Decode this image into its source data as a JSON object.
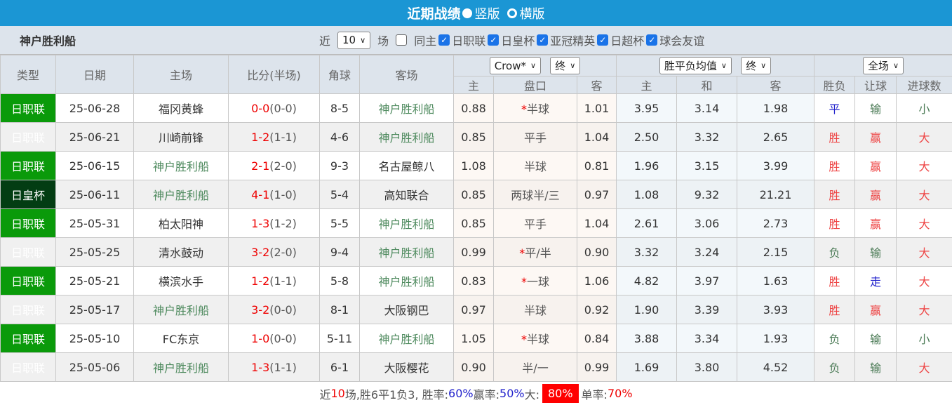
{
  "header": {
    "title": "近期战绩",
    "view_vertical": "竖版",
    "view_horizontal": "横版"
  },
  "toolbar": {
    "team": "神户胜利船",
    "recent_prefix": "近",
    "recent_count": "10",
    "recent_suffix": "场",
    "same_host": "同主",
    "filters": [
      {
        "label": "日职联",
        "checked": true
      },
      {
        "label": "日皇杯",
        "checked": true
      },
      {
        "label": "亚冠精英",
        "checked": true
      },
      {
        "label": "日超杯",
        "checked": true
      },
      {
        "label": "球会友谊",
        "checked": true
      }
    ]
  },
  "columns": {
    "type": "类型",
    "date": "日期",
    "home": "主场",
    "score": "比分(半场)",
    "corner": "角球",
    "away": "客场",
    "company_select": "Crow*",
    "final_select1": "终",
    "odds_select": "胜平负均值",
    "final_select2": "终",
    "period_select": "全场",
    "sub": [
      "主",
      "盘口",
      "客",
      "主",
      "和",
      "客",
      "胜负",
      "让球",
      "进球数"
    ]
  },
  "colors": {
    "league": "#0a9a0a",
    "cup": "#033d13",
    "header_bar": "#1b96d4"
  },
  "rows": [
    {
      "type": "日职联",
      "date": "25-06-28",
      "home": "福冈黄蜂",
      "score": "0-0",
      "ht": "(0-0)",
      "corner": "8-5",
      "away": "神户胜利船",
      "h": "0.88",
      "star": "*",
      "line": "半球",
      "a": "1.01",
      "w": "3.95",
      "d": "3.14",
      "l": "1.98",
      "res": "平",
      "hres": "输",
      "ou": "小"
    },
    {
      "type": "日职联",
      "date": "25-06-21",
      "home": "川崎前锋",
      "score": "1-2",
      "ht": "(1-1)",
      "corner": "4-6",
      "away": "神户胜利船",
      "h": "0.85",
      "star": "",
      "line": "平手",
      "a": "1.04",
      "w": "2.50",
      "d": "3.32",
      "l": "2.65",
      "res": "胜",
      "hres": "赢",
      "ou": "大"
    },
    {
      "type": "日职联",
      "date": "25-06-15",
      "home": "神户胜利船",
      "score": "2-1",
      "ht": "(2-0)",
      "corner": "9-3",
      "away": "名古屋鲸八",
      "h": "1.08",
      "star": "",
      "line": "半球",
      "a": "0.81",
      "w": "1.96",
      "d": "3.15",
      "l": "3.99",
      "res": "胜",
      "hres": "赢",
      "ou": "大"
    },
    {
      "type": "日皇杯",
      "date": "25-06-11",
      "home": "神户胜利船",
      "score": "4-1",
      "ht": "(1-0)",
      "corner": "5-4",
      "away": "高知联合",
      "h": "0.85",
      "star": "",
      "line": "两球半/三",
      "a": "0.97",
      "w": "1.08",
      "d": "9.32",
      "l": "21.21",
      "res": "胜",
      "hres": "赢",
      "ou": "大"
    },
    {
      "type": "日职联",
      "date": "25-05-31",
      "home": "柏太阳神",
      "score": "1-3",
      "ht": "(1-2)",
      "corner": "5-5",
      "away": "神户胜利船",
      "h": "0.85",
      "star": "",
      "line": "平手",
      "a": "1.04",
      "w": "2.61",
      "d": "3.06",
      "l": "2.73",
      "res": "胜",
      "hres": "赢",
      "ou": "大"
    },
    {
      "type": "日职联",
      "date": "25-05-25",
      "home": "清水鼓动",
      "score": "3-2",
      "ht": "(2-0)",
      "corner": "9-4",
      "away": "神户胜利船",
      "h": "0.99",
      "star": "*",
      "line": "平/半",
      "a": "0.90",
      "w": "3.32",
      "d": "3.24",
      "l": "2.15",
      "res": "负",
      "hres": "输",
      "ou": "大"
    },
    {
      "type": "日职联",
      "date": "25-05-21",
      "home": "横滨水手",
      "score": "1-2",
      "ht": "(1-1)",
      "corner": "5-8",
      "away": "神户胜利船",
      "h": "0.83",
      "star": "*",
      "line": "一球",
      "a": "1.06",
      "w": "4.82",
      "d": "3.97",
      "l": "1.63",
      "res": "胜",
      "hres": "走",
      "ou": "大"
    },
    {
      "type": "日职联",
      "date": "25-05-17",
      "home": "神户胜利船",
      "score": "3-2",
      "ht": "(0-0)",
      "corner": "8-1",
      "away": "大阪钢巴",
      "h": "0.97",
      "star": "",
      "line": "半球",
      "a": "0.92",
      "w": "1.90",
      "d": "3.39",
      "l": "3.93",
      "res": "胜",
      "hres": "赢",
      "ou": "大"
    },
    {
      "type": "日职联",
      "date": "25-05-10",
      "home": "FC东京",
      "score": "1-0",
      "ht": "(0-0)",
      "corner": "5-11",
      "away": "神户胜利船",
      "h": "1.05",
      "star": "*",
      "line": "半球",
      "a": "0.84",
      "w": "3.88",
      "d": "3.34",
      "l": "1.93",
      "res": "负",
      "hres": "输",
      "ou": "小"
    },
    {
      "type": "日职联",
      "date": "25-05-06",
      "home": "神户胜利船",
      "score": "1-3",
      "ht": "(1-1)",
      "corner": "6-1",
      "away": "大阪樱花",
      "h": "0.90",
      "star": "",
      "line": "半/一",
      "a": "0.99",
      "w": "1.69",
      "d": "3.80",
      "l": "4.52",
      "res": "负",
      "hres": "输",
      "ou": "大"
    }
  ],
  "summary": {
    "p1": "近",
    "n": "10",
    "p2": "场,胜6平1负3, 胜率:",
    "win_rate": "60%",
    "p3": " 赢率:",
    "cover_rate": "50%",
    "p4": " 大:",
    "over_rate": "80%",
    "p5": " 单率:",
    "odd_rate": "70%"
  }
}
